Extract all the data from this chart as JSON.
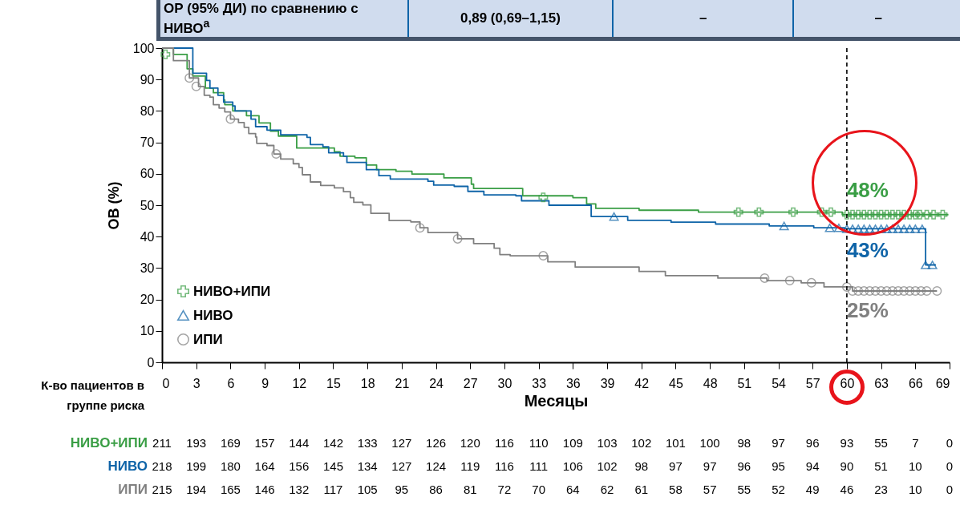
{
  "chart_data": {
    "type": "step",
    "xlabel": "Месяцы",
    "ylabel": "ОВ (%)",
    "xlim": [
      0,
      69
    ],
    "xticks": [
      0,
      3,
      6,
      9,
      12,
      15,
      18,
      21,
      24,
      27,
      30,
      33,
      36,
      39,
      42,
      45,
      48,
      51,
      54,
      57,
      60,
      63,
      66,
      69
    ],
    "ylim": [
      0,
      100
    ],
    "yticks": [
      0,
      10,
      20,
      30,
      40,
      50,
      60,
      70,
      80,
      90,
      100
    ],
    "grid": false,
    "legend": "bottom left",
    "series": [
      {
        "name": "НИВО+ИПИ",
        "color": "#3a9e45",
        "x": [
          0,
          1,
          2.2,
          2.7,
          3.8,
          4.5,
          5.4,
          5.5,
          6.2,
          7.4,
          8.5,
          9.5,
          10.2,
          11.8,
          15.1,
          15.6,
          16.9,
          17.9,
          18.8,
          20.5,
          21.9,
          24.7,
          27.1,
          27.3,
          31.6,
          36,
          37.2,
          38,
          41.8,
          47,
          59.6,
          68.9
        ],
        "values": [
          100,
          98,
          93.4,
          91.1,
          87.3,
          85.8,
          83.5,
          82,
          80,
          78.5,
          76.2,
          73.6,
          72,
          68.2,
          67,
          65.6,
          65.1,
          62.8,
          61.3,
          60.8,
          59.9,
          58.7,
          56.7,
          55.3,
          53,
          52.4,
          50.4,
          49,
          48.4,
          47.8,
          47,
          47
        ]
      },
      {
        "name": "НИВО",
        "color": "#0f64a8",
        "x": [
          0,
          2.7,
          3.9,
          4.2,
          4.9,
          5.4,
          6.2,
          6.4,
          7.8,
          8.2,
          9.2,
          10.4,
          12.7,
          13,
          14.1,
          14.6,
          15.9,
          16.2,
          17.9,
          19,
          20,
          23.3,
          23.8,
          25.6,
          26.8,
          28.2,
          31,
          31.5,
          33.9,
          37.6,
          40.8,
          44.6,
          48.5,
          53.2,
          57.1,
          59.8,
          66.9,
          67.8
        ],
        "values": [
          100,
          92,
          89.7,
          87.3,
          85,
          82.8,
          81.6,
          80,
          77.4,
          75,
          73.9,
          72.4,
          71.6,
          69.3,
          68.6,
          66.7,
          65.6,
          63.6,
          61.3,
          59.4,
          58.3,
          57.6,
          56.4,
          56,
          54.4,
          53.3,
          53,
          51.4,
          50,
          46.4,
          45.2,
          44.6,
          44,
          43.4,
          42.8,
          42.5,
          31,
          31
        ]
      },
      {
        "name": "ИПИ",
        "color": "#808080",
        "x": [
          0,
          1,
          2.4,
          3.2,
          3.7,
          4.2,
          4.5,
          5,
          5.5,
          6,
          6.7,
          7.2,
          7.6,
          8.2,
          8.3,
          9.2,
          9.8,
          10.4,
          11.5,
          12,
          12.3,
          13,
          13.9,
          15.1,
          15.9,
          16.5,
          16.8,
          17.6,
          18.3,
          19.9,
          21.8,
          22.6,
          23.3,
          25.9,
          27.3,
          29.1,
          29.6,
          30.5,
          33.8,
          36.2,
          41.8,
          44.1,
          48.7,
          53,
          56,
          58,
          60.5,
          67.9
        ],
        "values": [
          100,
          96,
          90.5,
          87.8,
          85,
          84.4,
          82,
          80.9,
          79.7,
          77.4,
          76.3,
          74.8,
          72.8,
          71.7,
          69.7,
          69,
          66.3,
          64.7,
          63.2,
          62,
          59.7,
          57.4,
          56.3,
          55.5,
          54.3,
          52.4,
          50.9,
          50.1,
          47.4,
          45.1,
          44.7,
          42.8,
          41.3,
          39.3,
          37.8,
          36.3,
          34.3,
          33.9,
          32,
          30.3,
          28.9,
          27.6,
          26.8,
          26,
          25.3,
          24,
          22.7,
          22.7
        ]
      },
      {
        "type": "scatter",
        "color": "#3a9e45",
        "marker": "cross",
        "x": [
          0.3,
          33.4,
          50.5,
          52.3,
          55.3,
          57.8,
          58.6,
          60,
          60.5,
          61,
          61.5,
          62,
          62.5,
          63,
          63.5,
          64,
          64.5,
          65,
          65.5,
          66,
          66.4,
          67,
          67.6,
          68.4
        ],
        "values": [
          98,
          52.5,
          47.8,
          47.8,
          47.8,
          47.8,
          47.8,
          47,
          47,
          47,
          47,
          47,
          47,
          47,
          47,
          47,
          47,
          47,
          47,
          47,
          47,
          47,
          47,
          47
        ]
      },
      {
        "type": "scatter",
        "color": "#0f64a8",
        "marker": "triangle",
        "x": [
          39.6,
          54.5,
          58.5,
          59.3,
          60,
          60.5,
          61,
          61.5,
          62,
          62.5,
          63,
          63.5,
          64,
          64.5,
          65,
          65.5,
          66,
          66.6,
          66.9,
          67.5
        ],
        "values": [
          46.4,
          43.4,
          42.8,
          42.8,
          42.5,
          42.5,
          42.5,
          42.5,
          42.5,
          42.5,
          42.5,
          42.5,
          42.5,
          42.5,
          42.5,
          42.5,
          42.5,
          42.5,
          31,
          31
        ]
      },
      {
        "type": "scatter",
        "color": "#808080",
        "marker": "circle",
        "x": [
          2.4,
          3,
          6,
          10,
          22.6,
          25.9,
          33.4,
          52.8,
          55,
          56.9,
          60,
          60.5,
          61,
          61.5,
          62,
          62.5,
          63,
          63.5,
          64,
          64.5,
          65,
          65.5,
          66,
          66.5,
          67,
          67.9
        ],
        "values": [
          90.5,
          87.8,
          77.4,
          66.3,
          42.8,
          39.3,
          33.9,
          26.8,
          26,
          25.3,
          24,
          22.7,
          22.7,
          22.7,
          22.7,
          22.7,
          22.7,
          22.7,
          22.7,
          22.7,
          22.7,
          22.7,
          22.7,
          22.7,
          22.7,
          22.7
        ]
      }
    ],
    "ref_lines": [
      {
        "axis": "x",
        "value": 60,
        "color": "#000000",
        "line_style": "dashed"
      }
    ],
    "annotations": [
      "ОР (95% ДИ) по сравнению с НИВО$^{a}$",
      "0,89 (0,69–1,15)",
      "–",
      "–",
      "К-во пациентов в группе риска",
      "211 193 169 157 144 142 133 127 126 120 116 110 109 103 102 101 100 98 97 96 93 55 7 0",
      "218 199 180 164 156 145 134 127 124 119 116 111 106 102 98 97 97 96 95 94 90 51 10 0",
      "215 194 165 146 132 117 105 95 86 81 72 70 64 62 61 58 57 55 52 49 46 23 10 0",
      "48%",
      "43%",
      "25%"
    ]
  }
}
